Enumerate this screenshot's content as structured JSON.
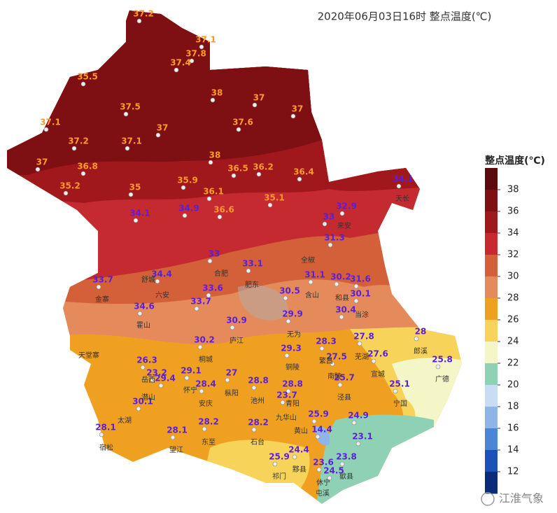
{
  "title": "2020年06月03日16时  整点温度(℃)",
  "watermark": "江淮气象",
  "legend": {
    "title": "整点温度(℃)",
    "ylim": [
      10,
      40
    ],
    "ticks": [
      38,
      36,
      34,
      32,
      30,
      28,
      26,
      24,
      22,
      20,
      18,
      16,
      14,
      12
    ],
    "colors": [
      "#5c0a0e",
      "#7e1014",
      "#a0171c",
      "#c42a30",
      "#d4603a",
      "#e58a5a",
      "#f0a020",
      "#f7d35a",
      "#f4f6c8",
      "#8fd1b4",
      "#c8dcf4",
      "#8fb4e8",
      "#4a86d8",
      "#1f4fb8",
      "#0a2a7a"
    ]
  },
  "stations": [
    37.2,
    37.1,
    37.8,
    37.4,
    35.5,
    38,
    37,
    37,
    37.5,
    37.6,
    37.1,
    37,
    37.2,
    37.1,
    38,
    37,
    36.8,
    36.5,
    36.2,
    36.4,
    34.1,
    35.2,
    35,
    35.9,
    36.1,
    35.1,
    34.9,
    36.6,
    32.9,
    34.1,
    33,
    31.3,
    33,
    33.1,
    31.1,
    30.2,
    31.6,
    33.7,
    34.4,
    33.6,
    30.5,
    30.1,
    33.7,
    34.6,
    30.4,
    29.9,
    30.9,
    28,
    27.8,
    28.3,
    30.2,
    29.3,
    26.3,
    27.5,
    27.6,
    25.8,
    29.1,
    27,
    23.2,
    29.4,
    25.7,
    28.4,
    28.8,
    28.8,
    25.1,
    23.7,
    30.1,
    25.9,
    24.9,
    28.1,
    28.1,
    28.2,
    28.2,
    14.4,
    23.1,
    24.4,
    25.9,
    23.8,
    23.6,
    24.5
  ],
  "places": [
    "天堂寨",
    "合肥",
    "六安",
    "安庆",
    "黄山",
    "宣城",
    "芜湖",
    "铜陵",
    "池州",
    "宁国",
    "祁门",
    "屯溪",
    "歙县",
    "休宁",
    "黟县",
    "石台",
    "东至",
    "望江",
    "宿松",
    "太湖",
    "潜山",
    "岳西",
    "怀宁",
    "枞阳",
    "桐城",
    "庐江",
    "无为",
    "含山",
    "和县",
    "当涂",
    "来安",
    "天长",
    "郎溪",
    "广德",
    "泾县",
    "九华山",
    "青阳",
    "繁昌",
    "南陵",
    "金寨",
    "霍山",
    "舒城",
    "肥东",
    "全椒"
  ]
}
